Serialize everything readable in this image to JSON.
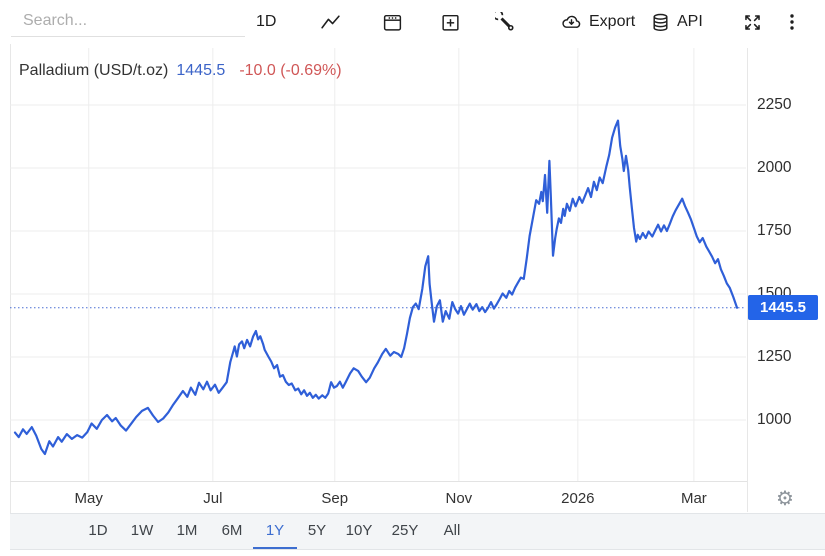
{
  "toolbar": {
    "search_placeholder": "Search...",
    "interval_label": "1D",
    "export_label": "Export",
    "api_label": "API",
    "icons": [
      "chart-line-icon",
      "calendar-icon",
      "compare-plus-icon",
      "tools-wrench-icon",
      "cloud-download-icon",
      "database-icon",
      "fullscreen-icon",
      "more-menu-icon"
    ]
  },
  "legend": {
    "title": "Palladium (USD/t.oz)",
    "value": "1445.5",
    "change": "-10.0 (-0.69%)"
  },
  "price_label": "1445.5",
  "timeframes": {
    "options": [
      "1D",
      "1W",
      "1M",
      "6M",
      "1Y",
      "5Y",
      "10Y",
      "25Y",
      "All"
    ],
    "active": "1Y"
  },
  "colors": {
    "line": "#2f5fd8",
    "price_box": "#2364e8",
    "value_blue": "#3c64c8",
    "change_red": "#d05757",
    "grid": "#ededed",
    "dotted_line": "#4a6fd4"
  },
  "chart_data": {
    "type": "line",
    "title": "Palladium (USD/t.oz)",
    "ylabel": "",
    "xlabel": "",
    "last_value": 1445.5,
    "change": -10.0,
    "change_pct": "-0.69%",
    "grid": true,
    "ylim": [
      758,
      2476
    ],
    "y_ticks": [
      1000,
      1250,
      1500,
      1750,
      2000,
      2250
    ],
    "x_ticks": [
      {
        "label": "May",
        "f": 0.101
      },
      {
        "label": "Jul",
        "f": 0.271
      },
      {
        "label": "Sep",
        "f": 0.438
      },
      {
        "label": "Nov",
        "f": 0.608
      },
      {
        "label": "2026",
        "f": 0.771
      },
      {
        "label": "Mar",
        "f": 0.93
      }
    ],
    "series": [
      {
        "name": "Palladium",
        "color": "#2f5fd8",
        "points": [
          [
            0.0,
            950
          ],
          [
            0.005,
            932
          ],
          [
            0.011,
            963
          ],
          [
            0.016,
            945
          ],
          [
            0.023,
            972
          ],
          [
            0.029,
            938
          ],
          [
            0.036,
            885
          ],
          [
            0.041,
            865
          ],
          [
            0.047,
            916
          ],
          [
            0.052,
            895
          ],
          [
            0.059,
            932
          ],
          [
            0.064,
            914
          ],
          [
            0.071,
            944
          ],
          [
            0.078,
            925
          ],
          [
            0.085,
            940
          ],
          [
            0.092,
            930
          ],
          [
            0.099,
            952
          ],
          [
            0.105,
            986
          ],
          [
            0.112,
            965
          ],
          [
            0.119,
            1000
          ],
          [
            0.126,
            1020
          ],
          [
            0.133,
            995
          ],
          [
            0.138,
            1008
          ],
          [
            0.145,
            978
          ],
          [
            0.152,
            958
          ],
          [
            0.159,
            985
          ],
          [
            0.166,
            1012
          ],
          [
            0.174,
            1036
          ],
          [
            0.182,
            1048
          ],
          [
            0.189,
            1018
          ],
          [
            0.196,
            992
          ],
          [
            0.203,
            1006
          ],
          [
            0.21,
            1030
          ],
          [
            0.216,
            1058
          ],
          [
            0.223,
            1086
          ],
          [
            0.23,
            1115
          ],
          [
            0.236,
            1092
          ],
          [
            0.241,
            1128
          ],
          [
            0.247,
            1100
          ],
          [
            0.252,
            1148
          ],
          [
            0.258,
            1122
          ],
          [
            0.263,
            1152
          ],
          [
            0.268,
            1118
          ],
          [
            0.274,
            1140
          ],
          [
            0.279,
            1108
          ],
          [
            0.285,
            1130
          ],
          [
            0.29,
            1150
          ],
          [
            0.295,
            1230
          ],
          [
            0.299,
            1272
          ],
          [
            0.301,
            1292
          ],
          [
            0.304,
            1252
          ],
          [
            0.307,
            1300
          ],
          [
            0.311,
            1312
          ],
          [
            0.314,
            1285
          ],
          [
            0.318,
            1318
          ],
          [
            0.322,
            1292
          ],
          [
            0.326,
            1330
          ],
          [
            0.33,
            1353
          ],
          [
            0.333,
            1320
          ],
          [
            0.336,
            1332
          ],
          [
            0.34,
            1300
          ],
          [
            0.342,
            1278
          ],
          [
            0.347,
            1252
          ],
          [
            0.351,
            1232
          ],
          [
            0.355,
            1205
          ],
          [
            0.359,
            1218
          ],
          [
            0.363,
            1172
          ],
          [
            0.367,
            1178
          ],
          [
            0.371,
            1152
          ],
          [
            0.375,
            1139
          ],
          [
            0.379,
            1145
          ],
          [
            0.384,
            1118
          ],
          [
            0.388,
            1125
          ],
          [
            0.392,
            1102
          ],
          [
            0.396,
            1118
          ],
          [
            0.4,
            1096
          ],
          [
            0.404,
            1108
          ],
          [
            0.408,
            1088
          ],
          [
            0.412,
            1100
          ],
          [
            0.416,
            1085
          ],
          [
            0.421,
            1098
          ],
          [
            0.425,
            1088
          ],
          [
            0.429,
            1105
          ],
          [
            0.433,
            1150
          ],
          [
            0.437,
            1128
          ],
          [
            0.441,
            1135
          ],
          [
            0.445,
            1152
          ],
          [
            0.449,
            1128
          ],
          [
            0.453,
            1150
          ],
          [
            0.459,
            1185
          ],
          [
            0.464,
            1205
          ],
          [
            0.47,
            1195
          ],
          [
            0.475,
            1172
          ],
          [
            0.481,
            1150
          ],
          [
            0.486,
            1168
          ],
          [
            0.492,
            1205
          ],
          [
            0.497,
            1228
          ],
          [
            0.503,
            1262
          ],
          [
            0.508,
            1282
          ],
          [
            0.514,
            1255
          ],
          [
            0.519,
            1270
          ],
          [
            0.525,
            1262
          ],
          [
            0.529,
            1250
          ],
          [
            0.533,
            1285
          ],
          [
            0.537,
            1342
          ],
          [
            0.541,
            1405
          ],
          [
            0.545,
            1448
          ],
          [
            0.549,
            1462
          ],
          [
            0.553,
            1440
          ],
          [
            0.558,
            1520
          ],
          [
            0.562,
            1610
          ],
          [
            0.566,
            1650
          ],
          [
            0.568,
            1540
          ],
          [
            0.571,
            1462
          ],
          [
            0.574,
            1390
          ],
          [
            0.578,
            1452
          ],
          [
            0.582,
            1475
          ],
          [
            0.586,
            1390
          ],
          [
            0.59,
            1432
          ],
          [
            0.595,
            1402
          ],
          [
            0.599,
            1468
          ],
          [
            0.603,
            1440
          ],
          [
            0.607,
            1422
          ],
          [
            0.611,
            1452
          ],
          [
            0.615,
            1418
          ],
          [
            0.619,
            1440
          ],
          [
            0.623,
            1462
          ],
          [
            0.627,
            1438
          ],
          [
            0.632,
            1460
          ],
          [
            0.636,
            1432
          ],
          [
            0.64,
            1448
          ],
          [
            0.644,
            1428
          ],
          [
            0.648,
            1445
          ],
          [
            0.652,
            1468
          ],
          [
            0.656,
            1442
          ],
          [
            0.66,
            1460
          ],
          [
            0.664,
            1480
          ],
          [
            0.668,
            1502
          ],
          [
            0.673,
            1485
          ],
          [
            0.677,
            1512
          ],
          [
            0.681,
            1498
          ],
          [
            0.685,
            1525
          ],
          [
            0.689,
            1545
          ],
          [
            0.693,
            1565
          ],
          [
            0.697,
            1560
          ],
          [
            0.701,
            1640
          ],
          [
            0.705,
            1730
          ],
          [
            0.71,
            1810
          ],
          [
            0.714,
            1872
          ],
          [
            0.718,
            1858
          ],
          [
            0.721,
            1905
          ],
          [
            0.723,
            1868
          ],
          [
            0.726,
            1972
          ],
          [
            0.729,
            1822
          ],
          [
            0.732,
            2028
          ],
          [
            0.734,
            1890
          ],
          [
            0.737,
            1652
          ],
          [
            0.74,
            1722
          ],
          [
            0.742,
            1758
          ],
          [
            0.745,
            1800
          ],
          [
            0.748,
            1782
          ],
          [
            0.751,
            1838
          ],
          [
            0.753,
            1810
          ],
          [
            0.756,
            1858
          ],
          [
            0.76,
            1830
          ],
          [
            0.764,
            1878
          ],
          [
            0.768,
            1848
          ],
          [
            0.773,
            1885
          ],
          [
            0.777,
            1862
          ],
          [
            0.781,
            1890
          ],
          [
            0.785,
            1920
          ],
          [
            0.789,
            1885
          ],
          [
            0.793,
            1945
          ],
          [
            0.797,
            1912
          ],
          [
            0.801,
            1962
          ],
          [
            0.805,
            1940
          ],
          [
            0.81,
            2005
          ],
          [
            0.814,
            2052
          ],
          [
            0.818,
            2120
          ],
          [
            0.822,
            2160
          ],
          [
            0.826,
            2188
          ],
          [
            0.829,
            2088
          ],
          [
            0.832,
            2035
          ],
          [
            0.834,
            1988
          ],
          [
            0.837,
            2048
          ],
          [
            0.84,
            1992
          ],
          [
            0.842,
            1925
          ],
          [
            0.845,
            1840
          ],
          [
            0.848,
            1762
          ],
          [
            0.851,
            1708
          ],
          [
            0.853,
            1735
          ],
          [
            0.856,
            1718
          ],
          [
            0.86,
            1742
          ],
          [
            0.864,
            1722
          ],
          [
            0.868,
            1748
          ],
          [
            0.873,
            1728
          ],
          [
            0.877,
            1752
          ],
          [
            0.881,
            1775
          ],
          [
            0.885,
            1748
          ],
          [
            0.889,
            1772
          ],
          [
            0.893,
            1750
          ],
          [
            0.897,
            1778
          ],
          [
            0.901,
            1808
          ],
          [
            0.905,
            1832
          ],
          [
            0.91,
            1858
          ],
          [
            0.914,
            1878
          ],
          [
            0.918,
            1848
          ],
          [
            0.922,
            1822
          ],
          [
            0.926,
            1795
          ],
          [
            0.93,
            1762
          ],
          [
            0.934,
            1728
          ],
          [
            0.938,
            1705
          ],
          [
            0.942,
            1722
          ],
          [
            0.947,
            1688
          ],
          [
            0.951,
            1668
          ],
          [
            0.955,
            1648
          ],
          [
            0.959,
            1622
          ],
          [
            0.963,
            1638
          ],
          [
            0.967,
            1598
          ],
          [
            0.971,
            1572
          ],
          [
            0.975,
            1542
          ],
          [
            0.979,
            1525
          ],
          [
            0.984,
            1488
          ],
          [
            0.989,
            1445.5
          ]
        ]
      }
    ]
  }
}
